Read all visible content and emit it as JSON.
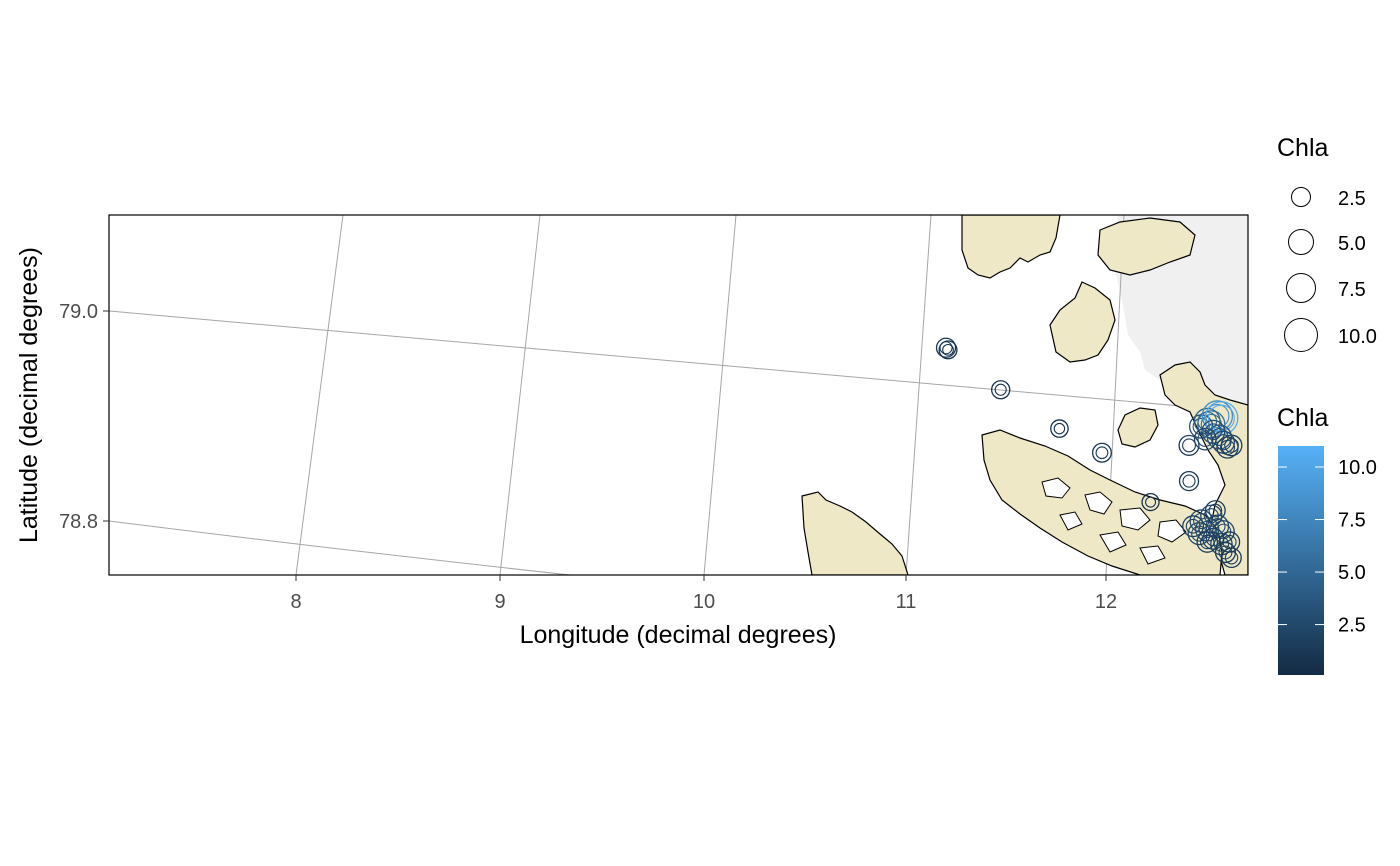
{
  "chart_data": {
    "type": "map",
    "xlabel": "Longitude (decimal degrees)",
    "ylabel": "Latitude (decimal degrees)",
    "x_ticks": [
      "8",
      "9",
      "10",
      "11",
      "12"
    ],
    "y_ticks": [
      "78.8",
      "79.0"
    ],
    "legend_size": {
      "title": "Chla",
      "entries": [
        {
          "label": "2.5",
          "value": 2.5
        },
        {
          "label": "5.0",
          "value": 5.0
        },
        {
          "label": "7.5",
          "value": 7.5
        },
        {
          "label": "10.0",
          "value": 10.0
        }
      ]
    },
    "legend_color": {
      "title": "Chla",
      "low_color": "#132b43",
      "high_color": "#56b1f7",
      "range": [
        0.1,
        11
      ],
      "ticks": [
        {
          "label": "2.5",
          "value": 2.5
        },
        {
          "label": "5.0",
          "value": 5.0
        },
        {
          "label": "7.5",
          "value": 7.5
        },
        {
          "label": "10.0",
          "value": 10.0
        }
      ]
    },
    "points": [
      {
        "lon": 11.21,
        "lat": 78.965,
        "chla": 1.2
      },
      {
        "lon": 11.22,
        "lat": 78.963,
        "chla": 0.8
      },
      {
        "lon": 11.48,
        "lat": 78.925,
        "chla": 0.9
      },
      {
        "lon": 11.77,
        "lat": 78.888,
        "chla": 0.7
      },
      {
        "lon": 11.98,
        "lat": 78.865,
        "chla": 1.1
      },
      {
        "lon": 12.22,
        "lat": 78.818,
        "chla": 0.6
      },
      {
        "lon": 12.41,
        "lat": 78.872,
        "chla": 1.5
      },
      {
        "lon": 12.41,
        "lat": 78.838,
        "chla": 1.2
      },
      {
        "lon": 12.47,
        "lat": 78.89,
        "chla": 3.0
      },
      {
        "lon": 12.5,
        "lat": 78.895,
        "chla": 4.5
      },
      {
        "lon": 12.52,
        "lat": 78.892,
        "chla": 5.5
      },
      {
        "lon": 12.55,
        "lat": 78.9,
        "chla": 8.0
      },
      {
        "lon": 12.57,
        "lat": 78.898,
        "chla": 10.5
      },
      {
        "lon": 12.53,
        "lat": 78.885,
        "chla": 2.8
      },
      {
        "lon": 12.56,
        "lat": 78.88,
        "chla": 3.5
      },
      {
        "lon": 12.58,
        "lat": 78.875,
        "chla": 2.4
      },
      {
        "lon": 12.6,
        "lat": 78.87,
        "chla": 2.0
      },
      {
        "lon": 12.62,
        "lat": 78.872,
        "chla": 1.8
      },
      {
        "lon": 12.49,
        "lat": 78.878,
        "chla": 2.2
      },
      {
        "lon": 12.54,
        "lat": 78.81,
        "chla": 1.4
      },
      {
        "lon": 12.52,
        "lat": 78.805,
        "chla": 2.0
      },
      {
        "lon": 12.47,
        "lat": 78.8,
        "chla": 2.5
      },
      {
        "lon": 12.43,
        "lat": 78.795,
        "chla": 1.8
      },
      {
        "lon": 12.5,
        "lat": 78.792,
        "chla": 3.0
      },
      {
        "lon": 12.55,
        "lat": 78.795,
        "chla": 2.6
      },
      {
        "lon": 12.58,
        "lat": 78.79,
        "chla": 2.2
      },
      {
        "lon": 12.53,
        "lat": 78.783,
        "chla": 1.9
      },
      {
        "lon": 12.57,
        "lat": 78.778,
        "chla": 2.1
      },
      {
        "lon": 12.61,
        "lat": 78.78,
        "chla": 1.6
      },
      {
        "lon": 12.59,
        "lat": 78.77,
        "chla": 1.5
      },
      {
        "lon": 12.62,
        "lat": 78.765,
        "chla": 1.3
      },
      {
        "lon": 12.46,
        "lat": 78.788,
        "chla": 2.4
      },
      {
        "lon": 12.5,
        "lat": 78.78,
        "chla": 1.7
      }
    ]
  }
}
